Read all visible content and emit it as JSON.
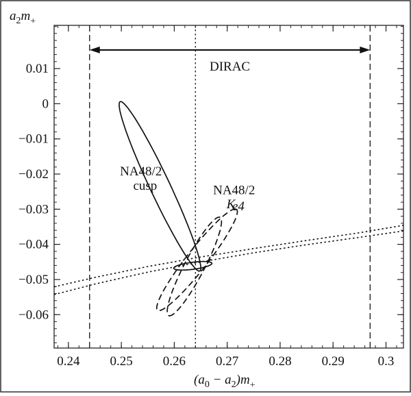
{
  "chart_data": {
    "type": "line",
    "xlabel": {
      "pre": "(a",
      "sub1": "0",
      "mid": " − a",
      "sub2": "2",
      "post": ")m",
      "sup": "+"
    },
    "ylabel": {
      "pre": "a",
      "sub": "2",
      "mid": "m",
      "sup": "+"
    },
    "xlim": [
      0.2373,
      0.3033
    ],
    "ylim": [
      -0.0695,
      0.0223
    ],
    "x_ticks": [
      {
        "value": 0.24,
        "label": "0.24"
      },
      {
        "value": 0.25,
        "label": "0.25"
      },
      {
        "value": 0.26,
        "label": "0.26"
      },
      {
        "value": 0.27,
        "label": "0.27"
      },
      {
        "value": 0.28,
        "label": "0.28"
      },
      {
        "value": 0.29,
        "label": "0.29"
      },
      {
        "value": 0.3,
        "label": "0.3"
      }
    ],
    "y_ticks": [
      {
        "value": 0.01,
        "label": "0.01"
      },
      {
        "value": 0,
        "label": "0"
      },
      {
        "value": -0.01,
        "label": "−0.01"
      },
      {
        "value": -0.02,
        "label": "−0.02"
      },
      {
        "value": -0.03,
        "label": "−0.03"
      },
      {
        "value": -0.04,
        "label": "−0.04"
      },
      {
        "value": -0.05,
        "label": "−0.05"
      },
      {
        "value": -0.06,
        "label": "−0.06"
      }
    ],
    "vertical_lines": [
      {
        "x": 0.244,
        "style": "dashed"
      },
      {
        "x": 0.264,
        "style": "dotted"
      },
      {
        "x": 0.297,
        "style": "dashed"
      }
    ],
    "dirac": {
      "label": "DIRAC",
      "x_start": 0.244,
      "x_end": 0.297,
      "y": 0.0153
    },
    "band_curves": [
      {
        "style": "dotted",
        "x": [
          0.2373,
          0.245,
          0.255,
          0.265,
          0.275,
          0.285,
          0.295,
          0.3033
        ],
        "y": [
          -0.0521,
          -0.0494,
          -0.0463,
          -0.0436,
          -0.0412,
          -0.0389,
          -0.0367,
          -0.0346
        ]
      },
      {
        "style": "dotted",
        "x": [
          0.2373,
          0.245,
          0.255,
          0.265,
          0.275,
          0.285,
          0.295,
          0.3033
        ],
        "y": [
          -0.0543,
          -0.0513,
          -0.0479,
          -0.045,
          -0.0424,
          -0.0401,
          -0.038,
          -0.0362
        ]
      }
    ],
    "ellipses": [
      {
        "style": "solid",
        "cx": 0.2573,
        "cy": -0.0235,
        "half_axis_1": [
          0.0075,
          -0.0241
        ],
        "half_axis_2": [
          0.0018,
          0.0009
        ]
      },
      {
        "style": "solid",
        "cx": 0.2635,
        "cy": -0.0461,
        "half_axis_1": [
          0.0036,
          0.0007
        ],
        "half_axis_2": [
          8e-05,
          -0.001
        ]
      },
      {
        "style": "dashed",
        "cx": 0.2643,
        "cy": -0.0444,
        "half_axis_1": [
          0.0074,
          0.0144
        ],
        "half_axis_2": [
          0.0018,
          -0.0013
        ]
      },
      {
        "style": "dashed",
        "cx": 0.2638,
        "cy": -0.0463,
        "half_axis_1": [
          -0.0048,
          -0.014
        ],
        "half_axis_2": [
          0.0018,
          -0.0009
        ]
      }
    ],
    "annotations": [
      {
        "id": "cusp-line1",
        "text": "NA48/2",
        "x": 0.2537,
        "y": -0.0204
      },
      {
        "id": "cusp-line2",
        "text": "cusp",
        "x": 0.2545,
        "y": -0.0245
      },
      {
        "id": "ke4-line1",
        "text": "NA48/2",
        "x": 0.2713,
        "y": -0.0257
      },
      {
        "id": "ke4-line2-main",
        "text": "K",
        "x": 0.2707,
        "y": -0.0297
      },
      {
        "id": "ke4-line2-sub",
        "text": "e4",
        "x": 0.2721,
        "y": -0.0303
      }
    ]
  }
}
